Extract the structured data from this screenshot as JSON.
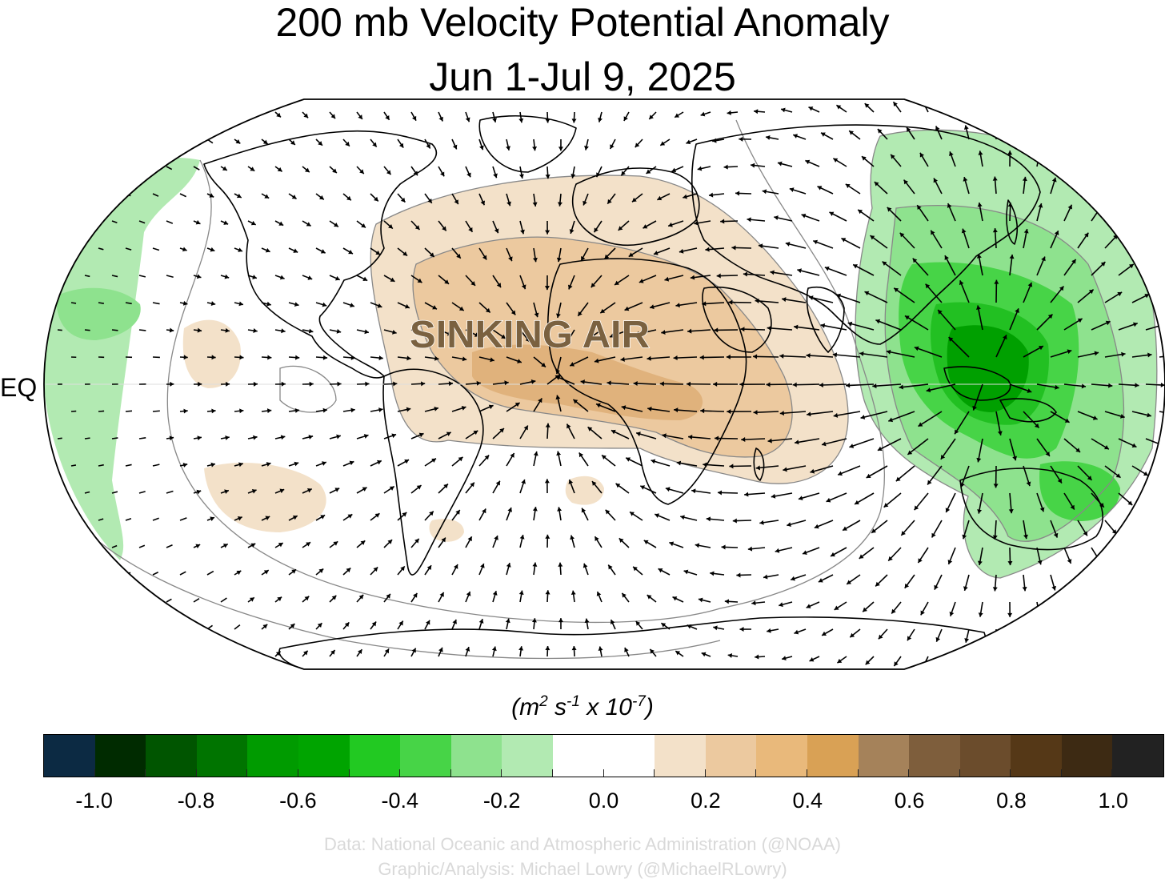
{
  "title": {
    "line1": "200 mb Velocity Potential Anomaly",
    "line2": "Jun 1-Jul 9, 2025"
  },
  "map": {
    "equator_label": "EQ",
    "annotation": "SINKING AIR",
    "colors": {
      "land_outline": "#000000",
      "contour_line": "#888888",
      "sinking_shading": [
        "#f3e1c9",
        "#ecc99f",
        "#e0b27c"
      ],
      "rising_shading": [
        "#b2eab2",
        "#8ee28e",
        "#47d447",
        "#22c022",
        "#00a000",
        "#007000"
      ],
      "annotation_fill": "#7a6140"
    }
  },
  "colorbar": {
    "units_text": {
      "base": "(m",
      "exp1": "2",
      "mid1": " s",
      "exp2": "-1",
      "mid2": " x 10",
      "exp3": "-7",
      "close": ")"
    },
    "colors": [
      "#0c2a43",
      "#002b00",
      "#005500",
      "#007400",
      "#009b00",
      "#00a400",
      "#22c922",
      "#47d447",
      "#8ee28e",
      "#b2eab2",
      "#ffffff",
      "#ffffff",
      "#f3e1c9",
      "#ecc99f",
      "#e9b97b",
      "#d9a155",
      "#a5825a",
      "#7e5e3c",
      "#6b4c2c",
      "#553817",
      "#3d2a13",
      "#222222"
    ],
    "tick_labels": [
      "-1.0",
      "-0.8",
      "-0.6",
      "-0.4",
      "-0.2",
      "0.0",
      "0.2",
      "0.4",
      "0.6",
      "0.8",
      "1.0"
    ]
  },
  "credits": {
    "line1": "Data: National Oceanic and Atmospheric Administration (@NOAA)",
    "line2": "Graphic/Analysis: Michael Lowry (@MichaelRLowry)"
  }
}
